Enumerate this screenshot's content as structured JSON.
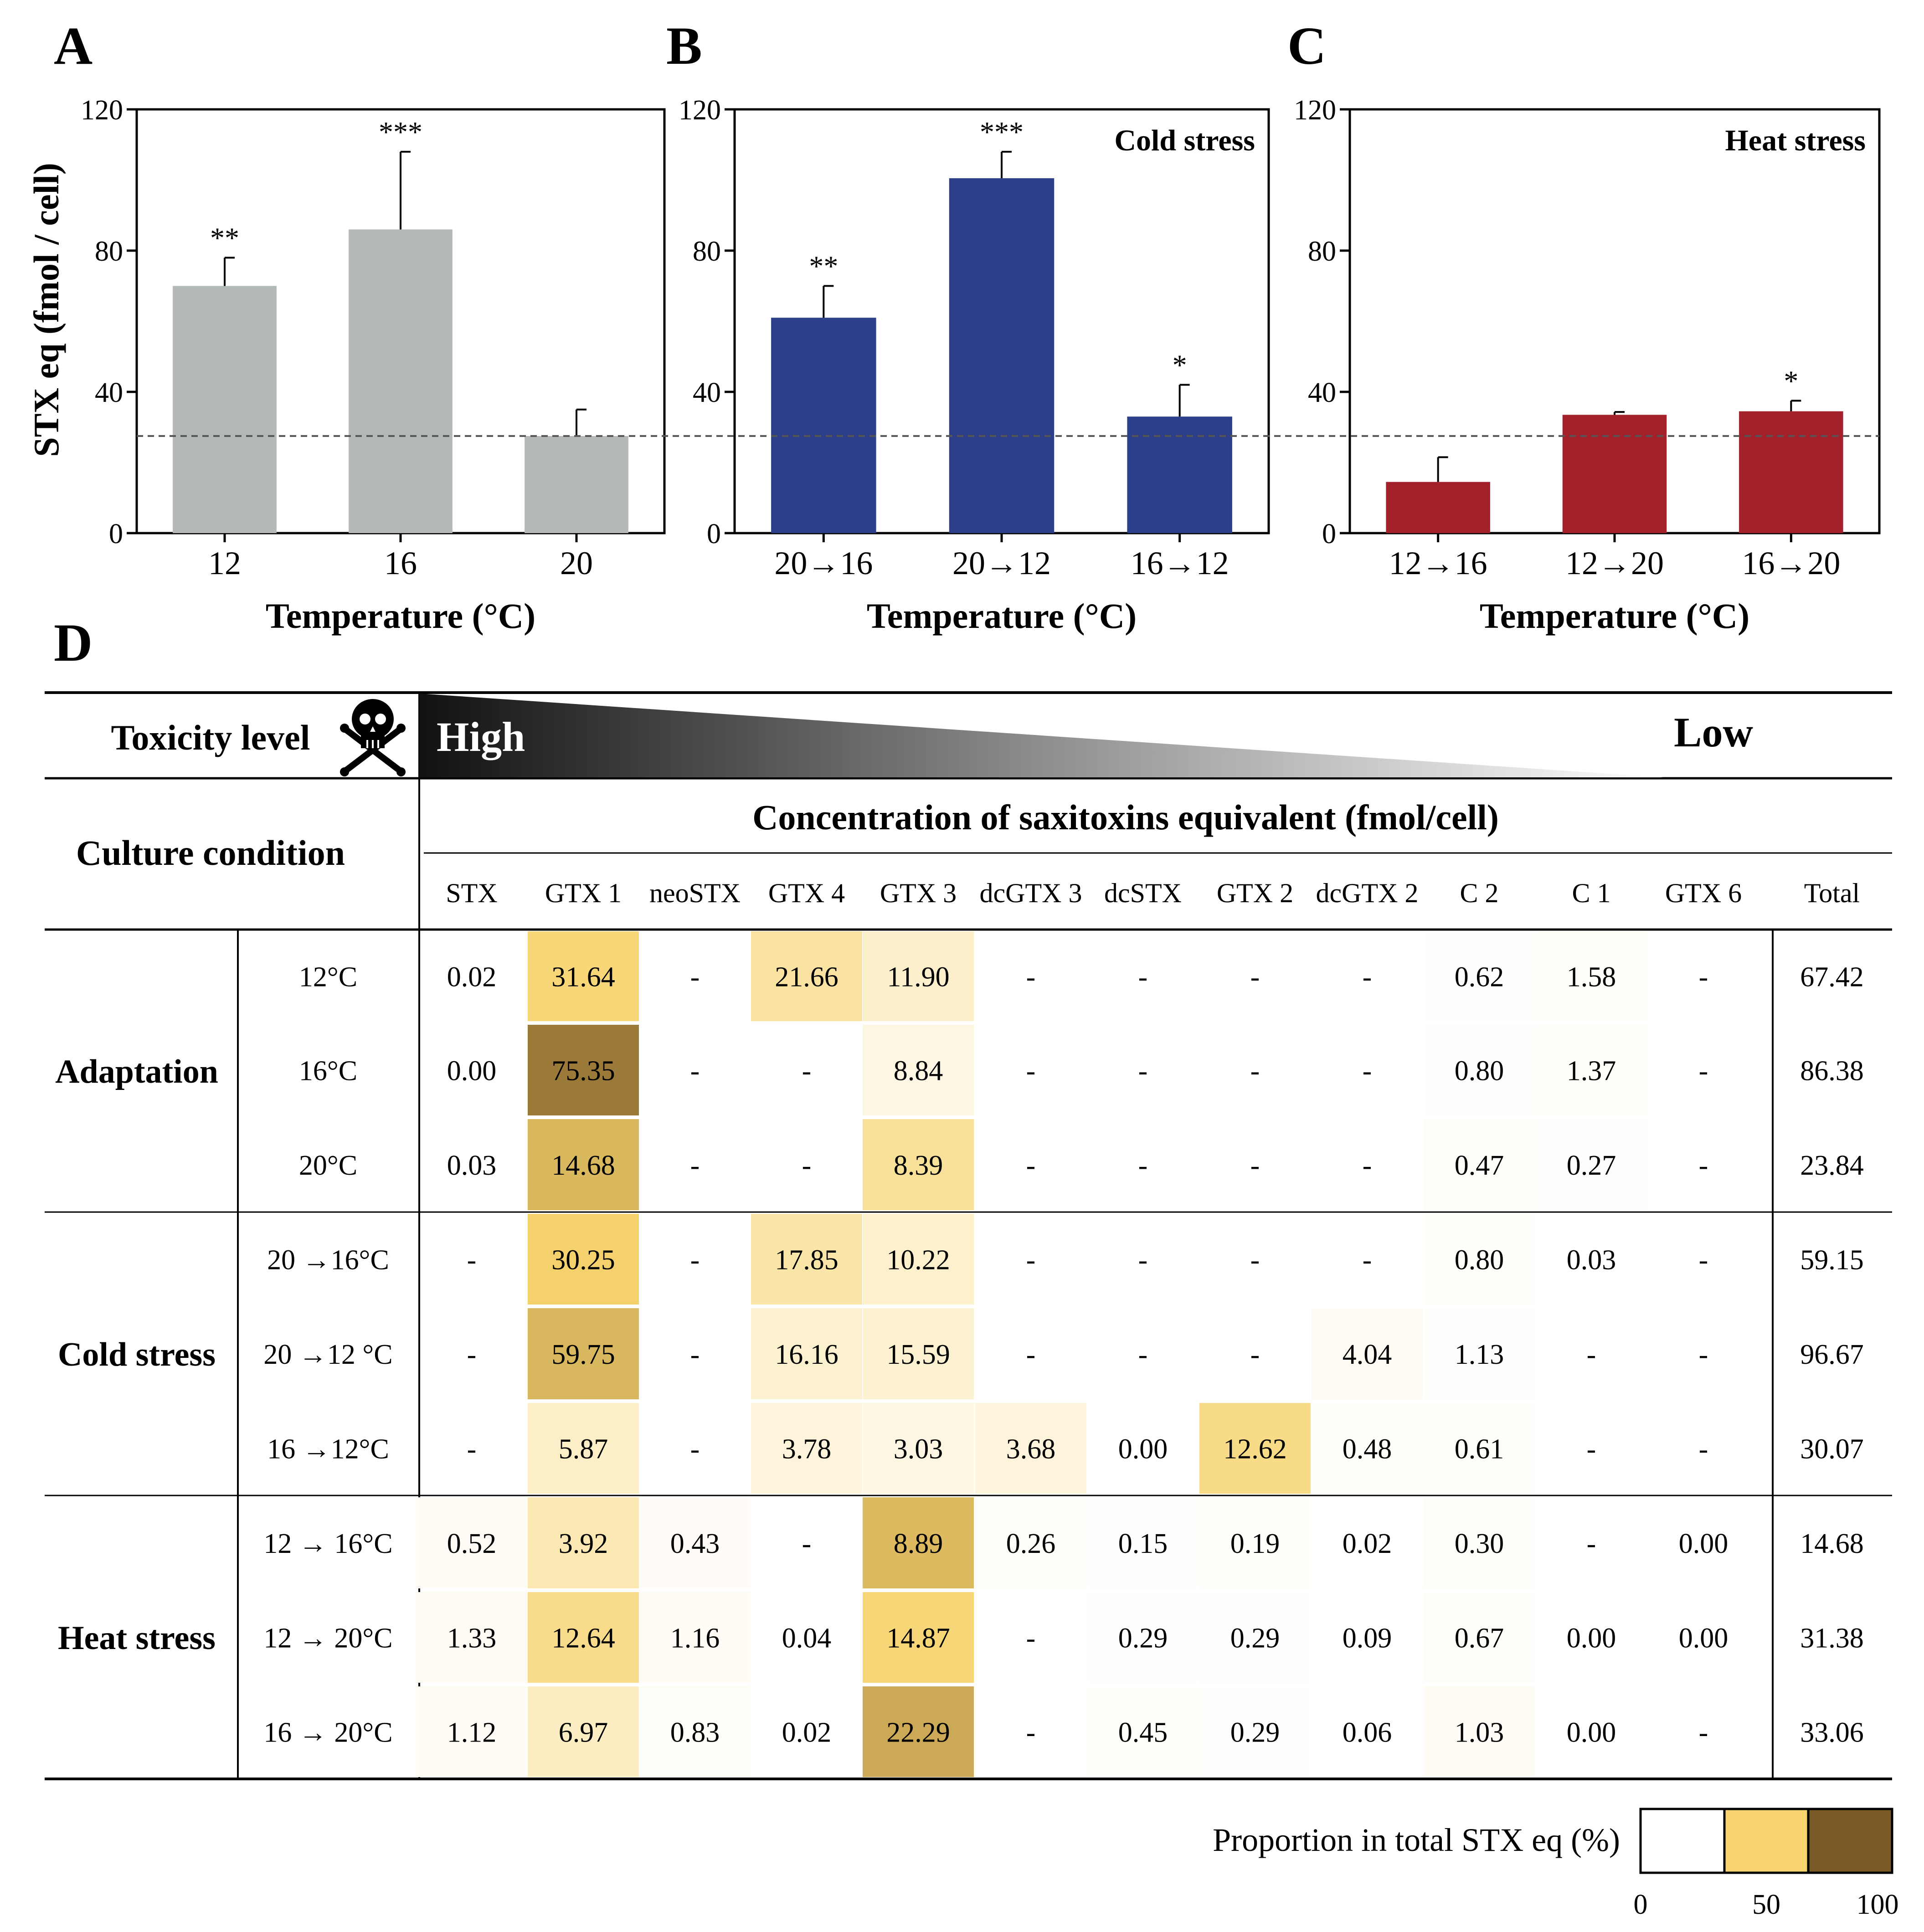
{
  "panels": {
    "A": {
      "letter": "A"
    },
    "B": {
      "letter": "B"
    },
    "C": {
      "letter": "C"
    },
    "D": {
      "letter": "D"
    }
  },
  "colors": {
    "adaptation": "#b3b9b4",
    "cold": "#2d3f88",
    "heat": "#a3212a",
    "dash_line": "#555555",
    "scale_low": "#ffffff",
    "scale_mid": "#f7d46f",
    "scale_high": "#7a5a26"
  },
  "chart_data": [
    {
      "type": "bar",
      "panel": "A",
      "title": "",
      "categories": [
        "12",
        "16",
        "20"
      ],
      "values": [
        70,
        86,
        27.5
      ],
      "errors": [
        8,
        22,
        7.5
      ],
      "significance": [
        "**",
        "***",
        ""
      ],
      "xlabel": "Temperature (°C)",
      "ylabel": "STX eq (fmol / cell)",
      "ylim": [
        0,
        120
      ],
      "yticks": [
        0,
        40,
        80,
        120
      ],
      "reference_line": 27.5,
      "grid": false
    },
    {
      "type": "bar",
      "panel": "B",
      "title": "Cold stress",
      "categories": [
        "20→16",
        "20→12",
        "16→12"
      ],
      "values": [
        61,
        100.5,
        33
      ],
      "errors": [
        9,
        7.5,
        9
      ],
      "significance": [
        "**",
        "***",
        "*"
      ],
      "xlabel": "Temperature (°C)",
      "ylabel": "",
      "ylim": [
        0,
        120
      ],
      "yticks": [
        0,
        40,
        80,
        120
      ],
      "reference_line": 27.5,
      "grid": false
    },
    {
      "type": "bar",
      "panel": "C",
      "title": "Heat stress",
      "categories": [
        "12→16",
        "12→20",
        "16→20"
      ],
      "values": [
        14.5,
        33.5,
        34.5
      ],
      "errors": [
        7,
        0.8,
        3
      ],
      "significance": [
        "",
        "",
        "*"
      ],
      "xlabel": "Temperature (°C)",
      "ylabel": "",
      "ylim": [
        0,
        120
      ],
      "yticks": [
        0,
        40,
        80,
        120
      ],
      "reference_line": 27.5,
      "grid": false
    },
    {
      "type": "table",
      "panel": "D",
      "toxicity_label": "Toxicity level",
      "toxicity_high": "High",
      "toxicity_low": "Low",
      "culture_condition_label": "Culture condition",
      "concentration_title": "Concentration of saxitoxins equivalent (fmol/cell)",
      "columns": [
        "STX",
        "GTX 1",
        "neoSTX",
        "GTX 4",
        "GTX 3",
        "dcGTX 3",
        "dcSTX",
        "GTX 2",
        "dcGTX 2",
        "C 2",
        "C 1",
        "GTX 6",
        "Total"
      ],
      "groups": [
        {
          "name": "Adaptation",
          "rows": [
            {
              "condition": "12°C",
              "values": [
                "0.02",
                "31.64",
                "-",
                "21.66",
                "11.90",
                "-",
                "-",
                "-",
                "-",
                "0.62",
                "1.58",
                "-",
                "67.42"
              ]
            },
            {
              "condition": "16°C",
              "values": [
                "0.00",
                "75.35",
                "-",
                "-",
                "8.84",
                "-",
                "-",
                "-",
                "-",
                "0.80",
                "1.37",
                "-",
                "86.38"
              ]
            },
            {
              "condition": "20°C",
              "values": [
                "0.03",
                "14.68",
                "-",
                "-",
                "8.39",
                "-",
                "-",
                "-",
                "-",
                "0.47",
                "0.27",
                "-",
                "23.84"
              ]
            }
          ]
        },
        {
          "name": "Cold stress",
          "rows": [
            {
              "condition": "20 →16°C",
              "values": [
                "-",
                "30.25",
                "-",
                "17.85",
                "10.22",
                "-",
                "-",
                "-",
                "-",
                "0.80",
                "0.03",
                "-",
                "59.15"
              ]
            },
            {
              "condition": "20 →12 °C",
              "values": [
                "-",
                "59.75",
                "-",
                "16.16",
                "15.59",
                "-",
                "-",
                "-",
                "4.04",
                "1.13",
                "-",
                "-",
                "96.67"
              ]
            },
            {
              "condition": "16 →12°C",
              "values": [
                "-",
                "5.87",
                "-",
                "3.78",
                "3.03",
                "3.68",
                "0.00",
                "12.62",
                "0.48",
                "0.61",
                "-",
                "-",
                "30.07"
              ]
            }
          ]
        },
        {
          "name": "Heat stress",
          "rows": [
            {
              "condition": "12 → 16°C",
              "values": [
                "0.52",
                "3.92",
                "0.43",
                "-",
                "8.89",
                "0.26",
                "0.15",
                "0.19",
                "0.02",
                "0.30",
                "-",
                "0.00",
                "14.68"
              ]
            },
            {
              "condition": "12 → 20°C",
              "values": [
                "1.33",
                "12.64",
                "1.16",
                "0.04",
                "14.87",
                "-",
                "0.29",
                "0.29",
                "0.09",
                "0.67",
                "0.00",
                "0.00",
                "31.38"
              ]
            },
            {
              "condition": "16 → 20°C",
              "values": [
                "1.12",
                "6.97",
                "0.83",
                "0.02",
                "22.29",
                "-",
                "0.45",
                "0.29",
                "0.06",
                "1.03",
                "0.00",
                "-",
                "33.06"
              ]
            }
          ]
        }
      ],
      "legend": {
        "title": "Proportion in total STX eq (%)",
        "ticks": [
          "0",
          "50",
          "100"
        ]
      }
    }
  ]
}
